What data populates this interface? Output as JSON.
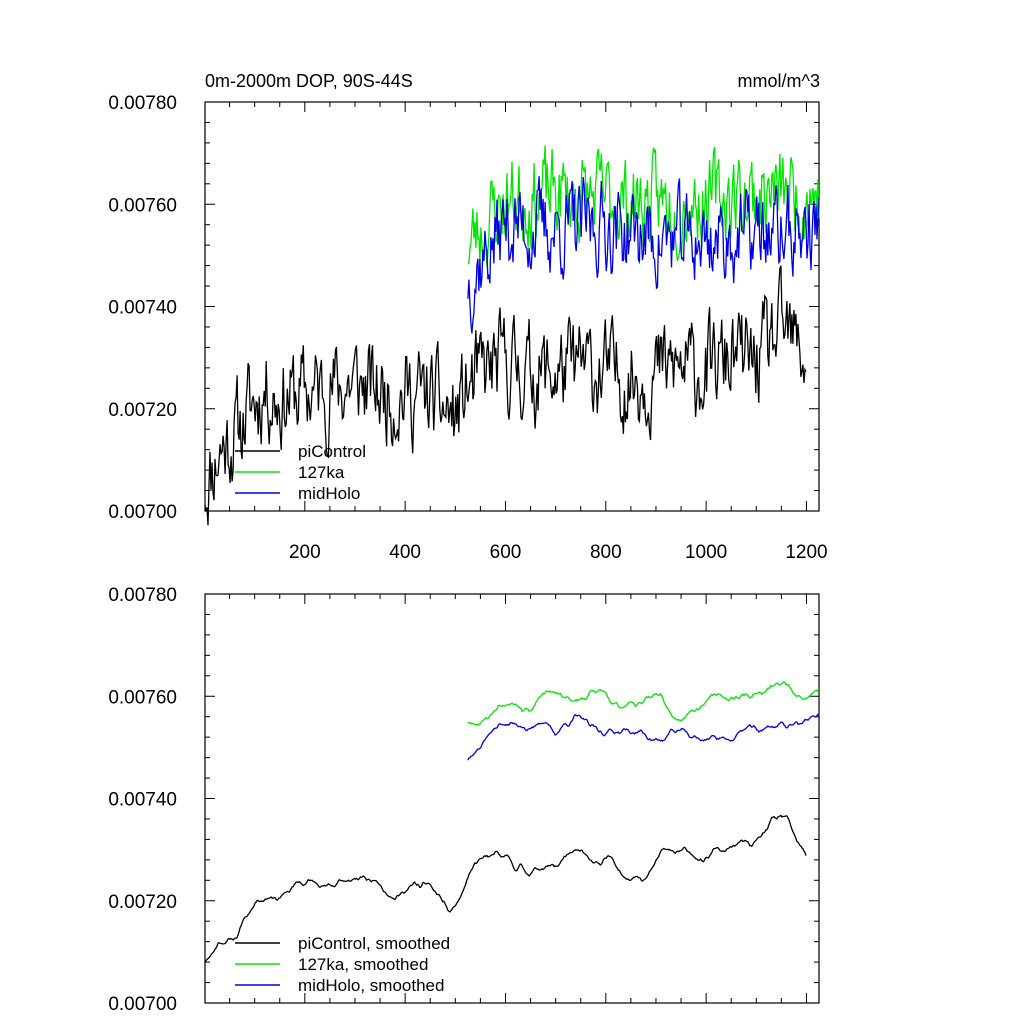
{
  "figure": {
    "title_left": "0m-2000m DOP, 90S-44S",
    "title_right": "mmol/m^3"
  },
  "chart_data": [
    {
      "type": "line",
      "panel": "raw",
      "title": "0m-2000m DOP, 90S-44S",
      "units": "mmol/m^3",
      "xlim": [
        1,
        1225
      ],
      "ylim": [
        0.007,
        0.0078
      ],
      "xticks": [
        200,
        400,
        600,
        800,
        1000,
        1200
      ],
      "xtick_labels": [
        "200",
        "400",
        "600",
        "800",
        "1000",
        "1200"
      ],
      "yticks": [
        0.007,
        0.0072,
        0.0074,
        0.0076,
        0.0078
      ],
      "ytick_labels": [
        "0.00700",
        "0.00720",
        "0.00740",
        "0.00760",
        "0.00780"
      ],
      "legend_position": "bottom-left",
      "series": [
        {
          "name": "piControl",
          "color": "#000000",
          "x_start": 1,
          "x_end": 1200,
          "anchors": [
            [
              1,
              0.00705
            ],
            [
              30,
              0.00712
            ],
            [
              60,
              0.00715
            ],
            [
              90,
              0.0072
            ],
            [
              120,
              0.00724
            ],
            [
              150,
              0.00722
            ],
            [
              200,
              0.00723
            ],
            [
              250,
              0.00724
            ],
            [
              300,
              0.00725
            ],
            [
              350,
              0.00723
            ],
            [
              400,
              0.00723
            ],
            [
              450,
              0.00722
            ],
            [
              500,
              0.00718
            ],
            [
              520,
              0.00723
            ],
            [
              560,
              0.00727
            ],
            [
              600,
              0.00729
            ],
            [
              650,
              0.00727
            ],
            [
              700,
              0.00727
            ],
            [
              750,
              0.00728
            ],
            [
              800,
              0.00727
            ],
            [
              850,
              0.00726
            ],
            [
              900,
              0.00727
            ],
            [
              950,
              0.00728
            ],
            [
              1000,
              0.00727
            ],
            [
              1050,
              0.0073
            ],
            [
              1100,
              0.00729
            ],
            [
              1150,
              0.00735
            ],
            [
              1200,
              0.0073
            ]
          ],
          "noise": 7.5e-05,
          "seed": 11
        },
        {
          "name": "127ka",
          "color": "#00e600",
          "x_start": 525,
          "x_end": 1225,
          "anchors": [
            [
              525,
              0.00752
            ],
            [
              600,
              0.00761
            ],
            [
              700,
              0.00762
            ],
            [
              800,
              0.00761
            ],
            [
              900,
              0.0076
            ],
            [
              1000,
              0.00761
            ],
            [
              1100,
              0.00762
            ],
            [
              1225,
              0.00762
            ]
          ],
          "noise": 7e-05,
          "seed": 23
        },
        {
          "name": "midHolo",
          "color": "#0000e6",
          "x_start": 525,
          "x_end": 1225,
          "anchors": [
            [
              525,
              0.00745
            ],
            [
              600,
              0.00756
            ],
            [
              700,
              0.00755
            ],
            [
              800,
              0.00756
            ],
            [
              900,
              0.00753
            ],
            [
              1000,
              0.00753
            ],
            [
              1100,
              0.00754
            ],
            [
              1225,
              0.00755
            ]
          ],
          "noise": 7e-05,
          "seed": 37
        }
      ]
    },
    {
      "type": "line",
      "panel": "smoothed",
      "xlim": [
        1,
        1225
      ],
      "ylim": [
        0.007,
        0.0078
      ],
      "xticks": [
        200,
        400,
        600,
        800,
        1000,
        1200
      ],
      "yticks": [
        0.007,
        0.0072,
        0.0074,
        0.0076,
        0.0078
      ],
      "ytick_labels": [
        "0.00700",
        "0.00720",
        "0.00740",
        "0.00760",
        "0.00780"
      ],
      "legend_position": "bottom-left",
      "series": [
        {
          "name": "piControl, smoothed",
          "color": "#000000",
          "x_start": 1,
          "x_end": 1200,
          "anchors": [
            [
              1,
              0.00708
            ],
            [
              30,
              0.00714
            ],
            [
              60,
              0.00712
            ],
            [
              90,
              0.00718
            ],
            [
              120,
              0.00723
            ],
            [
              150,
              0.00722
            ],
            [
              200,
              0.00723
            ],
            [
              250,
              0.00724
            ],
            [
              300,
              0.00724
            ],
            [
              350,
              0.00723
            ],
            [
              400,
              0.00723
            ],
            [
              450,
              0.00722
            ],
            [
              500,
              0.00716
            ],
            [
              520,
              0.00724
            ],
            [
              560,
              0.00727
            ],
            [
              600,
              0.00728
            ],
            [
              650,
              0.00726
            ],
            [
              700,
              0.00727
            ],
            [
              750,
              0.00728
            ],
            [
              800,
              0.00727
            ],
            [
              850,
              0.00726
            ],
            [
              900,
              0.00728
            ],
            [
              950,
              0.00729
            ],
            [
              1000,
              0.00728
            ],
            [
              1050,
              0.0073
            ],
            [
              1100,
              0.0073
            ],
            [
              1150,
              0.00736
            ],
            [
              1200,
              0.00728
            ]
          ],
          "noise": 4e-05,
          "smooth": 9,
          "seed": 11
        },
        {
          "name": "127ka, smoothed",
          "color": "#00e600",
          "x_start": 525,
          "x_end": 1225,
          "anchors": [
            [
              525,
              0.00754
            ],
            [
              600,
              0.00759
            ],
            [
              700,
              0.0076
            ],
            [
              800,
              0.00759
            ],
            [
              900,
              0.00759
            ],
            [
              1000,
              0.00759
            ],
            [
              1100,
              0.00761
            ],
            [
              1225,
              0.00762
            ]
          ],
          "noise": 4e-05,
          "smooth": 9,
          "seed": 23
        },
        {
          "name": "midHolo, smoothed",
          "color": "#0000e6",
          "x_start": 525,
          "x_end": 1225,
          "anchors": [
            [
              525,
              0.0075
            ],
            [
              600,
              0.00755
            ],
            [
              700,
              0.00754
            ],
            [
              800,
              0.00754
            ],
            [
              900,
              0.00752
            ],
            [
              1000,
              0.00752
            ],
            [
              1100,
              0.00753
            ],
            [
              1225,
              0.00756
            ]
          ],
          "noise": 4e-05,
          "smooth": 9,
          "seed": 37
        }
      ]
    }
  ]
}
